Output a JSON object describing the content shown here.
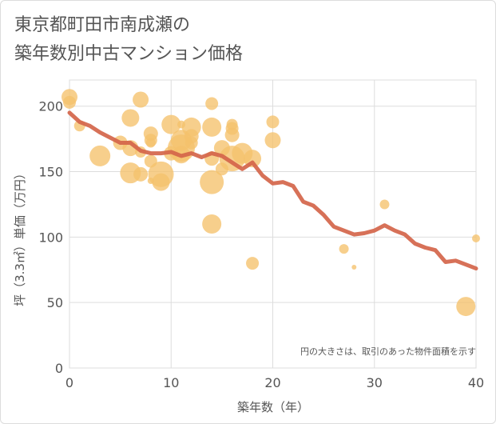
{
  "chart_data": {
    "type": "scatter",
    "title": [
      "東京都町田市南成瀬の",
      "築年数別中古マンション価格"
    ],
    "xlabel": "築年数（年）",
    "ylabel": "坪（3.3㎡）単価（万円）",
    "xlim": [
      0,
      40
    ],
    "ylim": [
      0,
      220
    ],
    "xticks": [
      0,
      10,
      20,
      30,
      40
    ],
    "yticks": [
      0,
      50,
      100,
      150,
      200
    ],
    "grid": true,
    "annotation": "円の大きさは、取引のあった物件面積を示す",
    "colors": {
      "bubble": "#f5c26b",
      "line": "#d4654a",
      "grid": "#dddddd",
      "text": "#555555"
    },
    "scatter_points": [
      {
        "x": 0,
        "y": 207,
        "s": 10
      },
      {
        "x": 0,
        "y": 203,
        "s": 8
      },
      {
        "x": 1,
        "y": 185,
        "s": 7
      },
      {
        "x": 3,
        "y": 162,
        "s": 13
      },
      {
        "x": 5,
        "y": 172,
        "s": 9
      },
      {
        "x": 6,
        "y": 191,
        "s": 11
      },
      {
        "x": 6,
        "y": 168,
        "s": 10
      },
      {
        "x": 6,
        "y": 149,
        "s": 13
      },
      {
        "x": 7,
        "y": 205,
        "s": 10
      },
      {
        "x": 7,
        "y": 148,
        "s": 9
      },
      {
        "x": 7,
        "y": 165,
        "s": 7
      },
      {
        "x": 8,
        "y": 179,
        "s": 9
      },
      {
        "x": 8,
        "y": 174,
        "s": 8
      },
      {
        "x": 8,
        "y": 172,
        "s": 6
      },
      {
        "x": 8,
        "y": 158,
        "s": 8
      },
      {
        "x": 8,
        "y": 143,
        "s": 4
      },
      {
        "x": 9,
        "y": 148,
        "s": 16
      },
      {
        "x": 9,
        "y": 142,
        "s": 11
      },
      {
        "x": 10,
        "y": 186,
        "s": 12
      },
      {
        "x": 10,
        "y": 164,
        "s": 9
      },
      {
        "x": 11,
        "y": 174,
        "s": 13
      },
      {
        "x": 11,
        "y": 168,
        "s": 17
      },
      {
        "x": 11,
        "y": 163,
        "s": 11
      },
      {
        "x": 11,
        "y": 186,
        "s": 5
      },
      {
        "x": 12,
        "y": 184,
        "s": 12
      },
      {
        "x": 12,
        "y": 177,
        "s": 9
      },
      {
        "x": 12,
        "y": 172,
        "s": 8
      },
      {
        "x": 14,
        "y": 202,
        "s": 8
      },
      {
        "x": 14,
        "y": 184,
        "s": 12
      },
      {
        "x": 14,
        "y": 160,
        "s": 9
      },
      {
        "x": 14,
        "y": 142,
        "s": 15
      },
      {
        "x": 14,
        "y": 110,
        "s": 12
      },
      {
        "x": 15,
        "y": 168,
        "s": 10
      },
      {
        "x": 15,
        "y": 152,
        "s": 8
      },
      {
        "x": 16,
        "y": 186,
        "s": 7
      },
      {
        "x": 16,
        "y": 183,
        "s": 8
      },
      {
        "x": 16,
        "y": 178,
        "s": 9
      },
      {
        "x": 16,
        "y": 160,
        "s": 16
      },
      {
        "x": 17,
        "y": 164,
        "s": 13
      },
      {
        "x": 18,
        "y": 160,
        "s": 11
      },
      {
        "x": 18,
        "y": 80,
        "s": 8
      },
      {
        "x": 20,
        "y": 188,
        "s": 8
      },
      {
        "x": 20,
        "y": 174,
        "s": 10
      },
      {
        "x": 27,
        "y": 91,
        "s": 6
      },
      {
        "x": 28,
        "y": 77,
        "s": 3
      },
      {
        "x": 31,
        "y": 125,
        "s": 6
      },
      {
        "x": 39,
        "y": 47,
        "s": 12
      },
      {
        "x": 40,
        "y": 99,
        "s": 5
      }
    ],
    "series": [
      {
        "x": [
          0,
          1,
          2,
          3,
          4,
          5,
          6,
          7,
          8,
          9,
          10,
          11,
          12,
          13,
          14,
          15,
          16,
          17,
          18,
          19,
          20,
          21,
          22,
          23,
          24,
          25,
          26,
          27,
          28,
          29,
          30,
          31,
          32,
          33,
          34,
          35,
          36,
          37,
          38,
          39,
          40
        ],
        "values": [
          195,
          188,
          185,
          180,
          176,
          172,
          172,
          166,
          164,
          164,
          165,
          162,
          164,
          161,
          164,
          162,
          157,
          152,
          157,
          147,
          141,
          142,
          139,
          127,
          124,
          117,
          108,
          105,
          102,
          103,
          105,
          109,
          105,
          102,
          95,
          92,
          90,
          81,
          82,
          79,
          76
        ]
      }
    ]
  }
}
